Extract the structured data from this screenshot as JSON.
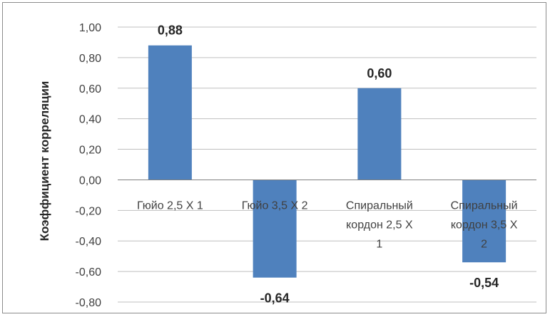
{
  "chart_data": {
    "type": "bar",
    "categories": [
      [
        "Гюйо 2,5 Х 1"
      ],
      [
        "Гюйо 3,5 Х 2"
      ],
      [
        "Спиральный",
        "кордон 2,5 Х",
        "1"
      ],
      [
        "Спиральный",
        "кордон 3,5 Х",
        "2"
      ]
    ],
    "values": [
      0.88,
      -0.64,
      0.6,
      -0.54
    ],
    "value_labels": [
      "0,88",
      "-0,64",
      "0,60",
      "-0,54"
    ],
    "ylabel": "Коэффициент корреляции",
    "ylim": [
      -0.8,
      1.0
    ],
    "y_ticks": [
      1.0,
      0.8,
      0.6,
      0.4,
      0.2,
      0.0,
      -0.2,
      -0.4,
      -0.6,
      -0.8
    ],
    "y_tick_labels": [
      "1,00",
      "0,80",
      "0,60",
      "0,40",
      "0,20",
      "0,00",
      "-0,20",
      "-0,40",
      "-0,60",
      "-0,80"
    ],
    "grid": true,
    "legend": "none",
    "colors": {
      "bar": "#4f81bd",
      "grid": "#bfbfbf",
      "axis": "#808080"
    }
  }
}
